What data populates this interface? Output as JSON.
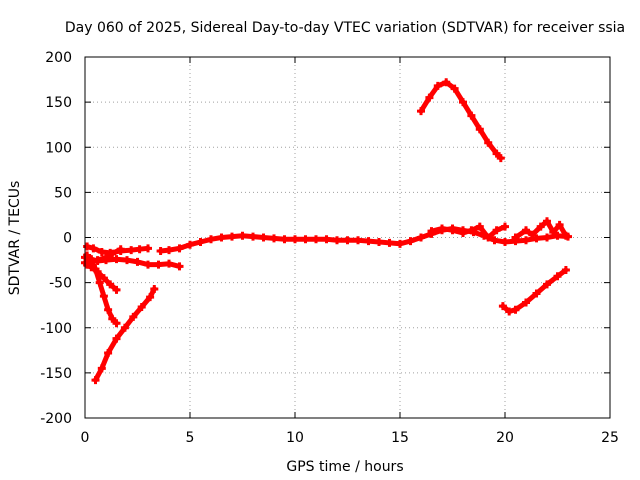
{
  "chart_data": {
    "type": "scatter",
    "title": "Day 060 of 2025, Sidereal Day-to-day VTEC variation (SDTVAR) for receiver ssia",
    "xlabel": "GPS time / hours",
    "ylabel": "SDTVAR / TECUs",
    "xlim": [
      0,
      25
    ],
    "ylim": [
      -200,
      200
    ],
    "xticks": [
      "0",
      "5",
      "10",
      "15",
      "20",
      "25"
    ],
    "yticks": [
      "-200",
      "-150",
      "-100",
      "-50",
      "0",
      "50",
      "100",
      "150",
      "200"
    ],
    "grid": true,
    "legend": "none",
    "series_color": "#ff0000",
    "series": [
      {
        "x": [
          0.1,
          0.3,
          0.5,
          0.7,
          0.9,
          1.1,
          1.3,
          1.5
        ],
        "y": [
          -20,
          -25,
          -35,
          -50,
          -65,
          -80,
          -90,
          -95
        ]
      },
      {
        "x": [
          0.5,
          0.8,
          1.1,
          1.5,
          1.9,
          2.3,
          2.7,
          3.1,
          3.3
        ],
        "y": [
          -158,
          -145,
          -128,
          -112,
          -100,
          -88,
          -77,
          -66,
          -57
        ]
      },
      {
        "x": [
          0.1,
          0.3,
          0.6,
          0.9,
          1.2,
          1.5
        ],
        "y": [
          -30,
          -33,
          -38,
          -45,
          -52,
          -58
        ]
      },
      {
        "x": [
          0.0,
          0.3,
          0.6,
          1.0,
          1.3,
          1.7
        ],
        "y": [
          -28,
          -27,
          -25,
          -22,
          -18,
          -13
        ]
      },
      {
        "x": [
          0.0,
          0.3,
          0.6,
          1.0,
          1.5,
          2.0,
          2.5,
          3.0,
          3.5,
          4.0,
          4.5
        ],
        "y": [
          -22,
          -24,
          -26,
          -25,
          -24,
          -25,
          -27,
          -30,
          -30,
          -29,
          -32
        ]
      },
      {
        "x": [
          0.1,
          0.4,
          0.8,
          1.2,
          1.7,
          2.2,
          2.6,
          3.0
        ],
        "y": [
          -10,
          -12,
          -16,
          -17,
          -15,
          -14,
          -13,
          -12
        ]
      },
      {
        "x": [
          3.6,
          4.0,
          4.5,
          5.0,
          5.5,
          6.0,
          6.5,
          7.0,
          7.5,
          8.0,
          8.5,
          9.0,
          9.5,
          10.0,
          10.5,
          11.0,
          11.5,
          12.0,
          12.5,
          13.0,
          13.5,
          14.0,
          14.5,
          15.0,
          15.5,
          16.0,
          16.5,
          17.0,
          17.5,
          18.0,
          18.5,
          19.0,
          19.5,
          20.0,
          20.5,
          21.0,
          21.5,
          22.0,
          22.5,
          23.0
        ],
        "y": [
          -15,
          -14,
          -12,
          -8,
          -5,
          -2,
          0,
          1,
          2,
          1,
          0,
          -1,
          -2,
          -2,
          -2,
          -2,
          -2,
          -3,
          -3,
          -3,
          -4,
          -5,
          -6,
          -7,
          -4,
          0,
          4,
          8,
          10,
          8,
          6,
          2,
          -3,
          -5,
          -4,
          -3,
          -1,
          0,
          2,
          1
        ]
      },
      {
        "x": [
          16.0,
          16.4,
          16.8,
          17.2,
          17.6,
          18.0,
          18.4,
          18.8,
          19.2,
          19.6,
          19.8
        ],
        "y": [
          140,
          155,
          168,
          172,
          165,
          150,
          135,
          120,
          105,
          93,
          88
        ]
      },
      {
        "x": [
          19.9,
          20.2,
          20.5,
          21.0,
          21.5,
          22.0,
          22.5,
          22.9
        ],
        "y": [
          -76,
          -82,
          -80,
          -72,
          -62,
          -52,
          -43,
          -36
        ]
      },
      {
        "x": [
          16.5,
          17.0,
          17.5,
          18.0,
          18.4,
          18.8,
          19.2,
          19.6,
          20.0
        ],
        "y": [
          7,
          10,
          8,
          5,
          8,
          12,
          0,
          8,
          12
        ]
      },
      {
        "x": [
          20.5,
          21.0,
          21.3,
          21.7,
          22.0,
          22.3,
          22.6,
          22.9
        ],
        "y": [
          0,
          8,
          3,
          12,
          18,
          6,
          14,
          2
        ]
      }
    ]
  }
}
